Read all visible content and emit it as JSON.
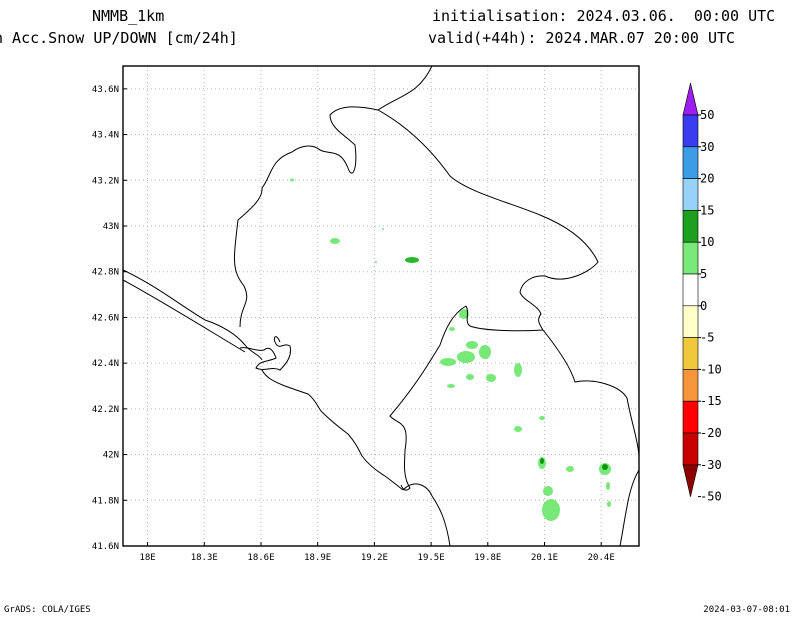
{
  "header": {
    "model": "NMMB_1km",
    "field": "n Acc.Snow UP/DOWN [cm/24h]",
    "init": "initialisation: 2024.03.06.  00:00 UTC",
    "valid": "valid(+44h): 2024.MAR.07 20:00 UTC"
  },
  "footer": {
    "credit": "GrADS: COLA/IGES",
    "timestamp": "2024-03-07-08:01"
  },
  "map": {
    "lon_range": [
      17.87,
      20.6
    ],
    "lat_range": [
      41.6,
      43.7
    ],
    "lon_ticks": [
      {
        "v": 18.0,
        "label": "18E"
      },
      {
        "v": 18.3,
        "label": "18.3E"
      },
      {
        "v": 18.6,
        "label": "18.6E"
      },
      {
        "v": 18.9,
        "label": "18.9E"
      },
      {
        "v": 19.2,
        "label": "19.2E"
      },
      {
        "v": 19.5,
        "label": "19.5E"
      },
      {
        "v": 19.8,
        "label": "19.8E"
      },
      {
        "v": 20.1,
        "label": "20.1E"
      },
      {
        "v": 20.4,
        "label": "20.4E"
      }
    ],
    "lat_ticks": [
      {
        "v": 41.6,
        "label": "41.6N"
      },
      {
        "v": 41.8,
        "label": "41.8N"
      },
      {
        "v": 42.0,
        "label": "42N"
      },
      {
        "v": 42.2,
        "label": "42.2N"
      },
      {
        "v": 42.4,
        "label": "42.4N"
      },
      {
        "v": 42.6,
        "label": "42.6N"
      },
      {
        "v": 42.8,
        "label": "42.8N"
      },
      {
        "v": 43.0,
        "label": "43N"
      },
      {
        "v": 43.2,
        "label": "43.2N"
      },
      {
        "v": 43.4,
        "label": "43.4N"
      },
      {
        "v": 43.6,
        "label": "43.6N"
      }
    ],
    "grid": true,
    "colors": {
      "border": "#000000",
      "grid": "#b4b4b4",
      "snow_light": "#78e878",
      "snow_mid": "#2ab82a",
      "snow_dark": "#0a960a"
    }
  },
  "colorbar": {
    "labels": [
      "50",
      "30",
      "20",
      "15",
      "10",
      "5",
      "0",
      "-5",
      "-10",
      "-15",
      "-20",
      "-30",
      "-50"
    ],
    "colors": [
      "#9c1ef0",
      "#3a3cf0",
      "#3c9ce6",
      "#96d2fa",
      "#1ea01e",
      "#78e878",
      "#ffffff",
      "#ffffc8",
      "#f0c83c",
      "#f5963c",
      "#ff0000",
      "#c80000",
      "#8c0000"
    ]
  }
}
